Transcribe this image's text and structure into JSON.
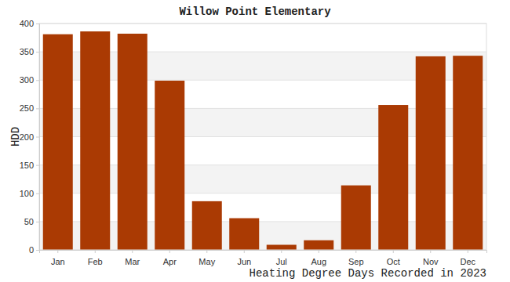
{
  "chart_data": {
    "type": "bar",
    "title": "Willow Point Elementary",
    "x_label": "Heating Degree Days Recorded in 2023",
    "y_label": "HDD",
    "categories": [
      "Jan",
      "Feb",
      "Mar",
      "Apr",
      "May",
      "Jun",
      "Jul",
      "Aug",
      "Sep",
      "Oct",
      "Nov",
      "Dec"
    ],
    "values": [
      381,
      386,
      382,
      299,
      86,
      56,
      9,
      17,
      114,
      256,
      342,
      343
    ],
    "color": "#aa3a03",
    "ylim": [
      0,
      400
    ],
    "yticks": [
      0,
      50,
      100,
      150,
      200,
      250,
      300,
      350,
      400
    ],
    "grid": true
  }
}
